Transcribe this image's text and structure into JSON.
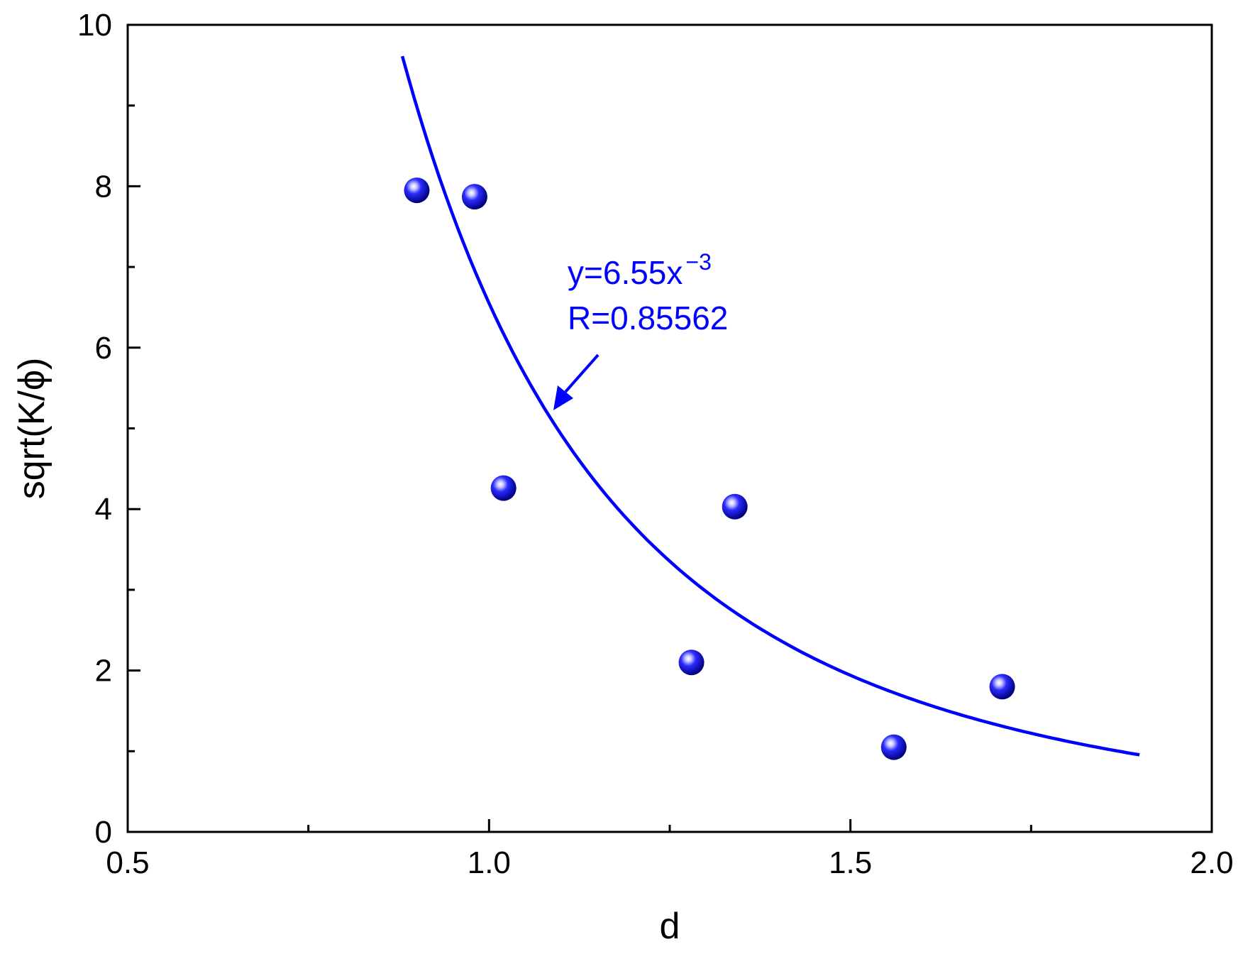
{
  "chart_data": {
    "type": "scatter",
    "xlabel": "d",
    "ylabel": "sqrt(K/ϕ)",
    "xlim": [
      0.5,
      2.0
    ],
    "ylim": [
      0,
      10
    ],
    "x_ticks": [
      "0.5",
      "1.0",
      "1.5",
      "2.0"
    ],
    "x_tick_values": [
      0.5,
      1.0,
      1.5,
      2.0
    ],
    "x_minor_ticks": [
      0.75,
      1.25,
      1.75
    ],
    "y_ticks": [
      "0",
      "2",
      "4",
      "6",
      "8",
      "10"
    ],
    "y_tick_values": [
      0,
      2,
      4,
      6,
      8,
      10
    ],
    "y_minor_ticks": [
      1,
      3,
      5,
      7,
      9
    ],
    "grid": false,
    "marker_color": "#0000ff",
    "series": [
      {
        "points": [
          {
            "x": 0.9,
            "y": 7.95
          },
          {
            "x": 0.98,
            "y": 7.87
          },
          {
            "x": 1.02,
            "y": 4.26
          },
          {
            "x": 1.28,
            "y": 2.1
          },
          {
            "x": 1.34,
            "y": 4.03
          },
          {
            "x": 1.56,
            "y": 1.05
          },
          {
            "x": 1.71,
            "y": 1.8
          }
        ]
      }
    ],
    "fit": {
      "coefficient": 6.55,
      "exponent": -3,
      "x_range": [
        0.88,
        1.9
      ],
      "color": "#0000ff"
    },
    "annotation": {
      "equation_main": "y=6.55x",
      "equation_exp": "−3",
      "r_text": "R=0.85562",
      "color": "#0000ff"
    }
  }
}
